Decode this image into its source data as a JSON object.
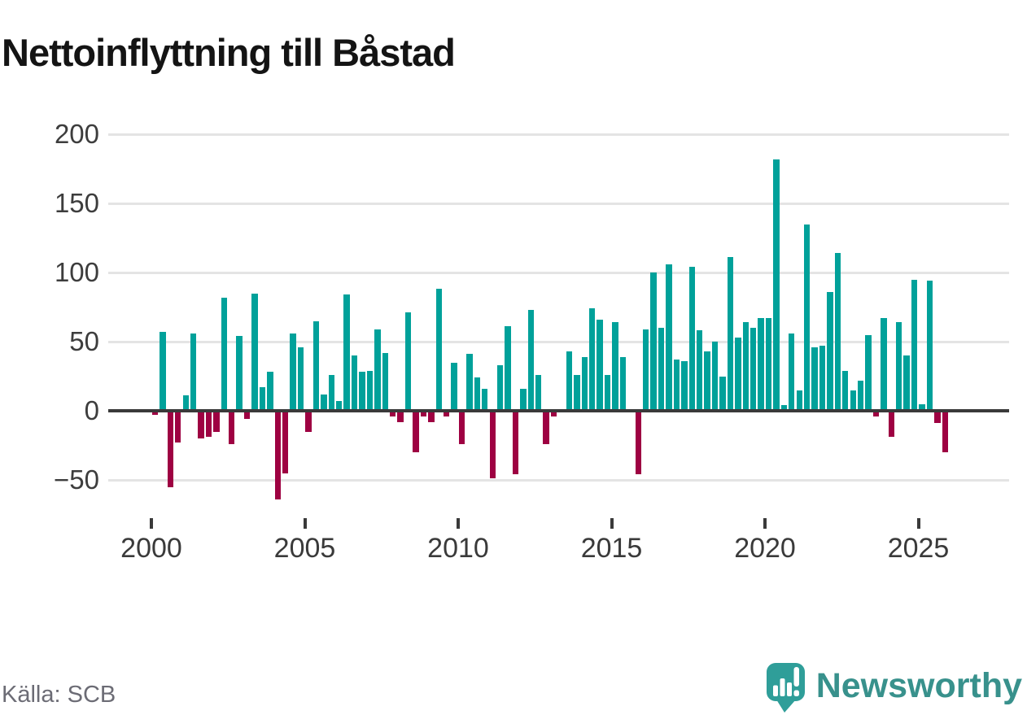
{
  "meta": {
    "title": "Nettoinflyttning till Båstad"
  },
  "footer": {
    "source": "Källa: SCB",
    "brand": "Newsworthy"
  },
  "colors": {
    "positive": "#00a19a",
    "negative": "#9e0142",
    "grid": "#e4e4e4",
    "axis": "#3a3a3a",
    "title_text": "#141414",
    "muted_text": "#6c6c75",
    "brand_teal": "#38918c",
    "logo_bubble": "#2f9e99"
  },
  "chart_data": {
    "type": "bar",
    "title": "Nettoinflyttning till Båstad",
    "period": "quarterly",
    "start": "2000-Q1",
    "end": "2025-Q4",
    "xlabel": "",
    "ylabel": "",
    "ylim": [
      -70,
      210
    ],
    "grid": true,
    "source": "Källa: SCB",
    "y_tick_values": [
      200,
      150,
      100,
      50,
      0,
      -50
    ],
    "y_tick_labels": [
      "200",
      "150",
      "100",
      "50",
      "0",
      "−50"
    ],
    "x_tick_years": [
      2000,
      2005,
      2010,
      2015,
      2020,
      2025
    ],
    "x_tick_labels": [
      "2000",
      "2005",
      "2010",
      "2015",
      "2020",
      "2025"
    ],
    "values": [
      -3,
      57,
      -55,
      -23,
      11,
      56,
      -20,
      -19,
      -15,
      82,
      -24,
      54,
      -6,
      85,
      17,
      28,
      -64,
      -45,
      56,
      46,
      -15,
      65,
      12,
      26,
      7,
      84,
      40,
      28,
      29,
      59,
      42,
      -4,
      -8,
      71,
      -30,
      -4,
      -8,
      88,
      -4,
      35,
      -24,
      41,
      24,
      16,
      -49,
      33,
      61,
      -46,
      16,
      73,
      26,
      -24,
      -4,
      0,
      43,
      26,
      39,
      74,
      66,
      26,
      64,
      39,
      0,
      -46,
      59,
      100,
      60,
      106,
      37,
      36,
      104,
      58,
      43,
      50,
      25,
      111,
      53,
      64,
      60,
      67,
      67,
      182,
      4,
      56,
      15,
      135,
      46,
      47,
      86,
      114,
      29,
      15,
      22,
      55,
      -4,
      67,
      -19,
      64,
      40,
      95,
      5,
      94,
      -9,
      -30
    ]
  }
}
